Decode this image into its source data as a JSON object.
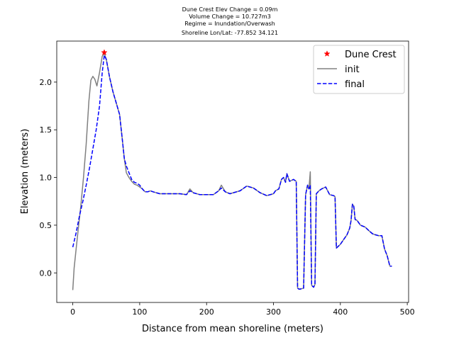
{
  "chart_data": {
    "type": "line",
    "title_lines": [
      "Dune Crest Elev Change = 0.09m",
      "Volume Change = 10.727m3",
      "Regime = Inundation/Overwash",
      "Shoreline Lon/Lat: -77.852 34.121"
    ],
    "xlabel": "Distance from mean shoreline (meters)",
    "ylabel": "Elevation (meters)",
    "xlim": [
      -24,
      502
    ],
    "ylim": [
      -0.31,
      2.43
    ],
    "xticks": [
      0,
      100,
      200,
      300,
      400,
      500
    ],
    "yticks": [
      0.0,
      0.5,
      1.0,
      1.5,
      2.0
    ],
    "xtick_labels": [
      "0",
      "100",
      "200",
      "300",
      "400",
      "500"
    ],
    "ytick_labels": [
      "0.0",
      "0.5",
      "1.0",
      "1.5",
      "2.0"
    ],
    "legend_position": "top-right",
    "legend": [
      "Dune Crest",
      "init",
      "final"
    ],
    "dune_crest": {
      "name": "Dune Crest",
      "x": 47,
      "y": 2.31,
      "color": "#ff0000",
      "marker": "star"
    },
    "series": [
      {
        "name": "init",
        "color": "#808080",
        "style": "solid",
        "x": [
          0,
          2,
          5,
          8,
          12,
          16,
          20,
          24,
          27,
          30,
          33,
          36,
          40,
          44,
          47,
          50,
          55,
          60,
          65,
          70,
          74,
          77,
          80,
          84,
          88,
          92,
          96,
          100,
          104,
          108,
          112,
          116,
          120,
          130,
          140,
          150,
          160,
          170,
          175,
          180,
          190,
          200,
          210,
          218,
          222,
          228,
          235,
          240,
          250,
          260,
          270,
          280,
          290,
          300,
          303,
          308,
          312,
          315,
          318,
          320,
          324,
          330,
          334,
          336,
          338,
          340,
          345,
          348,
          351,
          353,
          355,
          357,
          360,
          362,
          364,
          368,
          372,
          378,
          384,
          390,
          392,
          394,
          400,
          405,
          410,
          414,
          416,
          418,
          420,
          422,
          425,
          430,
          437,
          443,
          448,
          452,
          457,
          462,
          466,
          470,
          474,
          477
        ],
        "y": [
          -0.18,
          0.05,
          0.25,
          0.45,
          0.7,
          1.0,
          1.35,
          1.8,
          2.02,
          2.06,
          2.03,
          1.96,
          2.1,
          2.27,
          2.3,
          2.24,
          2.05,
          1.9,
          1.78,
          1.66,
          1.4,
          1.2,
          1.05,
          1.0,
          0.96,
          0.93,
          0.92,
          0.9,
          0.88,
          0.85,
          0.85,
          0.86,
          0.85,
          0.83,
          0.83,
          0.83,
          0.83,
          0.82,
          0.88,
          0.84,
          0.82,
          0.82,
          0.82,
          0.86,
          0.92,
          0.85,
          0.83,
          0.84,
          0.86,
          0.91,
          0.89,
          0.84,
          0.81,
          0.83,
          0.86,
          0.88,
          0.98,
          1.0,
          0.95,
          1.04,
          0.96,
          0.98,
          0.96,
          -0.16,
          -0.17,
          -0.17,
          -0.16,
          0.82,
          0.92,
          0.88,
          1.06,
          -0.13,
          -0.15,
          -0.12,
          0.83,
          0.86,
          0.88,
          0.9,
          0.82,
          0.81,
          0.8,
          0.26,
          0.3,
          0.35,
          0.4,
          0.47,
          0.55,
          0.72,
          0.7,
          0.56,
          0.55,
          0.5,
          0.48,
          0.44,
          0.41,
          0.4,
          0.39,
          0.39,
          0.25,
          0.18,
          0.07,
          0.07
        ]
      },
      {
        "name": "final",
        "color": "#0000ff",
        "style": "dashed",
        "x": [
          0,
          5,
          10,
          15,
          20,
          25,
          30,
          35,
          40,
          44,
          47,
          50,
          55,
          60,
          65,
          70,
          74,
          77,
          80,
          84,
          88,
          92,
          96,
          100,
          104,
          108,
          112,
          116,
          120,
          130,
          140,
          150,
          160,
          170,
          175,
          180,
          190,
          200,
          210,
          218,
          222,
          228,
          235,
          240,
          250,
          260,
          270,
          280,
          290,
          300,
          303,
          308,
          312,
          315,
          318,
          320,
          324,
          330,
          334,
          336,
          338,
          340,
          345,
          348,
          351,
          353,
          355,
          357,
          360,
          362,
          364,
          368,
          372,
          378,
          384,
          390,
          392,
          394,
          400,
          405,
          410,
          414,
          416,
          418,
          420,
          422,
          425,
          430,
          437,
          443,
          448,
          452,
          457,
          462,
          466,
          470,
          474,
          477
        ],
        "y": [
          0.27,
          0.42,
          0.6,
          0.75,
          0.92,
          1.1,
          1.3,
          1.5,
          1.75,
          2.1,
          2.28,
          2.24,
          2.05,
          1.9,
          1.78,
          1.66,
          1.4,
          1.2,
          1.12,
          1.05,
          0.98,
          0.95,
          0.94,
          0.92,
          0.88,
          0.85,
          0.85,
          0.86,
          0.85,
          0.83,
          0.83,
          0.83,
          0.83,
          0.82,
          0.86,
          0.84,
          0.82,
          0.82,
          0.82,
          0.86,
          0.89,
          0.85,
          0.83,
          0.84,
          0.86,
          0.91,
          0.89,
          0.84,
          0.81,
          0.83,
          0.86,
          0.88,
          0.98,
          1.0,
          0.95,
          1.04,
          0.96,
          0.98,
          0.96,
          -0.16,
          -0.17,
          -0.17,
          -0.16,
          0.82,
          0.92,
          0.88,
          0.92,
          -0.13,
          -0.15,
          -0.12,
          0.83,
          0.86,
          0.88,
          0.9,
          0.82,
          0.81,
          0.8,
          0.26,
          0.3,
          0.35,
          0.4,
          0.47,
          0.55,
          0.72,
          0.7,
          0.56,
          0.55,
          0.5,
          0.48,
          0.44,
          0.41,
          0.4,
          0.39,
          0.39,
          0.25,
          0.18,
          0.07,
          0.07
        ]
      }
    ]
  }
}
